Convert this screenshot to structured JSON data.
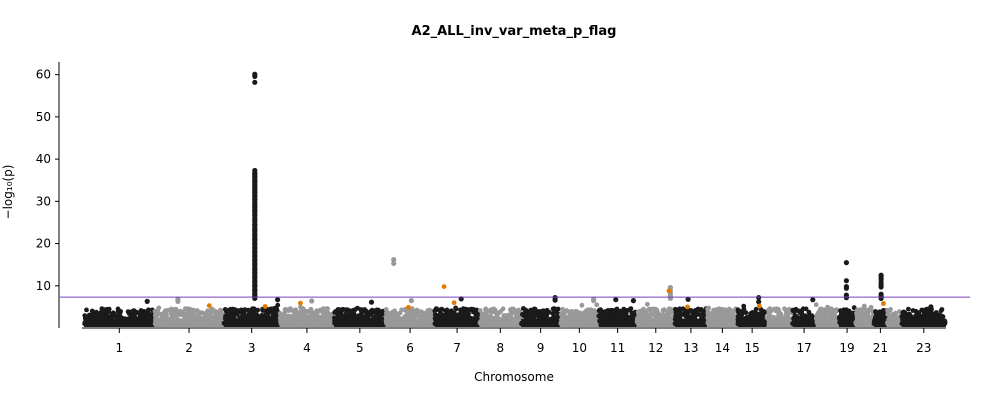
{
  "chart_data": {
    "type": "scatter",
    "title": "A2_ALL_inv_var_meta_p_flag",
    "xlabel": "Chromosome",
    "ylabel": "−log₁₀(p)",
    "ylim": [
      0,
      63
    ],
    "yticks": [
      10,
      20,
      30,
      40,
      50,
      60
    ],
    "grid": false,
    "significance_line": 7.3,
    "colors": {
      "odd_chromosome": "#1a1a1a",
      "even_chromosome": "#999999",
      "highlight": "#e07b00",
      "threshold": "#7a3fbf"
    },
    "chromosomes": [
      {
        "chr": "1",
        "start": 0,
        "end": 248
      },
      {
        "chr": "2",
        "start": 248,
        "end": 490
      },
      {
        "chr": "3",
        "start": 490,
        "end": 688
      },
      {
        "chr": "4",
        "start": 688,
        "end": 878
      },
      {
        "chr": "5",
        "start": 878,
        "end": 1060
      },
      {
        "chr": "6",
        "start": 1060,
        "end": 1231
      },
      {
        "chr": "7",
        "start": 1231,
        "end": 1390
      },
      {
        "chr": "8",
        "start": 1390,
        "end": 1535
      },
      {
        "chr": "9",
        "start": 1535,
        "end": 1673
      },
      {
        "chr": "10",
        "start": 1673,
        "end": 1807
      },
      {
        "chr": "11",
        "start": 1807,
        "end": 1942
      },
      {
        "chr": "12",
        "start": 1942,
        "end": 2075
      },
      {
        "chr": "13",
        "start": 2075,
        "end": 2189
      },
      {
        "chr": "14",
        "start": 2189,
        "end": 2296
      },
      {
        "chr": "15",
        "start": 2296,
        "end": 2398
      },
      {
        "chr": "16",
        "start": 2398,
        "end": 2488
      },
      {
        "chr": "17",
        "start": 2488,
        "end": 2571
      },
      {
        "chr": "18",
        "start": 2571,
        "end": 2651
      },
      {
        "chr": "19",
        "start": 2651,
        "end": 2710
      },
      {
        "chr": "20",
        "start": 2710,
        "end": 2774
      },
      {
        "chr": "21",
        "start": 2774,
        "end": 2821
      },
      {
        "chr": "22",
        "start": 2821,
        "end": 2872
      },
      {
        "chr": "23",
        "start": 2872,
        "end": 3028
      }
    ],
    "xtick_labels": [
      "1",
      "2",
      "3",
      "4",
      "5",
      "6",
      "7",
      "8",
      "9",
      "10",
      "11",
      "12",
      "13",
      "14",
      "15",
      "17",
      "19",
      "21",
      "23"
    ],
    "peaks": [
      {
        "chr": "1",
        "x": 222,
        "y": [
          6.3
        ]
      },
      {
        "chr": "2",
        "x": 330,
        "y": [
          6.8,
          6.3
        ]
      },
      {
        "chr": "3",
        "x": 600,
        "y": [
          60.1,
          59.6,
          58.2,
          37.3,
          36.5,
          35.8,
          35.0,
          34.4,
          33.6,
          32.9,
          32.1,
          31.3,
          30.5,
          29.5,
          28.6,
          27.7,
          26.8,
          25.6,
          24.4,
          23.2,
          22.0,
          21.0,
          20.0,
          19.0,
          18.0,
          17.0,
          16.0,
          15.0,
          14.0,
          13.0,
          12.0,
          11.0,
          10.0,
          9.0,
          8.0,
          7.5
        ]
      },
      {
        "chr": "3",
        "x": 680,
        "y": [
          6.7
        ]
      },
      {
        "chr": "4",
        "x": 800,
        "y": [
          6.4
        ]
      },
      {
        "chr": "5",
        "x": 1010,
        "y": [
          6.1
        ]
      },
      {
        "chr": "6",
        "x": 1088,
        "y": [
          16.2,
          15.3
        ]
      },
      {
        "chr": "6",
        "x": 1150,
        "y": [
          6.5
        ]
      },
      {
        "chr": "7",
        "x": 1325,
        "y": [
          6.9
        ]
      },
      {
        "chr": "9",
        "x": 1655,
        "y": [
          7.2,
          6.6
        ]
      },
      {
        "chr": "10",
        "x": 1790,
        "y": [
          6.8,
          6.5
        ]
      },
      {
        "chr": "11",
        "x": 1868,
        "y": [
          6.7
        ]
      },
      {
        "chr": "11",
        "x": 1930,
        "y": [
          6.5
        ]
      },
      {
        "chr": "12",
        "x": 2060,
        "y": [
          9.6,
          8.8,
          8.1,
          7.5,
          7.0
        ]
      },
      {
        "chr": "13",
        "x": 2122,
        "y": [
          6.8
        ]
      },
      {
        "chr": "15",
        "x": 2370,
        "y": [
          7.2,
          6.2
        ]
      },
      {
        "chr": "17",
        "x": 2560,
        "y": [
          6.7
        ]
      },
      {
        "chr": "19",
        "x": 2678,
        "y": [
          15.5,
          11.2,
          9.8,
          9.4,
          7.8,
          7.2
        ]
      },
      {
        "chr": "21",
        "x": 2800,
        "y": [
          12.5,
          12.1,
          11.5,
          10.8,
          10.2,
          9.7,
          8.0,
          7.5,
          7.0
        ]
      },
      {
        "chr": "23",
        "x": 2975,
        "y": [
          5.0
        ]
      }
    ],
    "highlights": [
      {
        "chr": "2",
        "x": 440,
        "y": 5.3
      },
      {
        "chr": "3",
        "x": 636,
        "y": 5.1
      },
      {
        "chr": "4",
        "x": 760,
        "y": 5.9
      },
      {
        "chr": "6",
        "x": 1140,
        "y": 4.9
      },
      {
        "chr": "7",
        "x": 1265,
        "y": 9.8
      },
      {
        "chr": "7",
        "x": 1300,
        "y": 6.0
      },
      {
        "chr": "12",
        "x": 2055,
        "y": 8.8
      },
      {
        "chr": "13",
        "x": 2120,
        "y": 5.0
      },
      {
        "chr": "15",
        "x": 2372,
        "y": 5.2
      },
      {
        "chr": "21",
        "x": 2808,
        "y": 5.8
      }
    ]
  }
}
